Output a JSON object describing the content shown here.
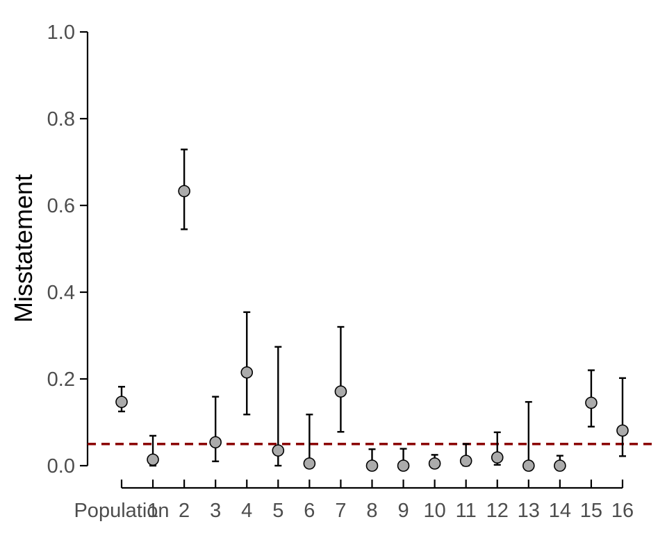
{
  "chart_data": {
    "type": "scatter",
    "title": "",
    "xlabel": "",
    "ylabel": "Misstatement",
    "ylim": [
      0,
      1
    ],
    "yticks": [
      0.0,
      0.2,
      0.4,
      0.6,
      0.8,
      1.0
    ],
    "ytick_labels": [
      "0.0",
      "0.2",
      "0.4",
      "0.6",
      "0.8",
      "1.0"
    ],
    "categories": [
      "Population",
      "1",
      "2",
      "3",
      "4",
      "5",
      "6",
      "7",
      "8",
      "9",
      "10",
      "11",
      "12",
      "13",
      "14",
      "15",
      "16"
    ],
    "values": [
      0.147,
      0.014,
      0.633,
      0.054,
      0.215,
      0.035,
      0.005,
      0.171,
      0.0,
      0.0,
      0.005,
      0.011,
      0.019,
      0.0,
      0.0,
      0.145,
      0.081
    ],
    "lower": [
      0.125,
      0.0,
      0.545,
      0.01,
      0.118,
      0.0,
      0.0,
      0.078,
      0.0,
      0.0,
      0.0,
      0.0,
      0.002,
      0.0,
      0.0,
      0.09,
      0.022
    ],
    "upper": [
      0.182,
      0.069,
      0.729,
      0.159,
      0.354,
      0.274,
      0.118,
      0.32,
      0.038,
      0.039,
      0.025,
      0.05,
      0.077,
      0.147,
      0.023,
      0.22,
      0.202
    ],
    "reference_line": 0.05,
    "grid": false,
    "legend": "none",
    "colors": {
      "point_fill": "#ababab",
      "point_stroke": "#000000",
      "error_bar": "#000000",
      "reference_line": "#8b0000",
      "axis": "#000000",
      "tick_label": "#4d4d4d"
    }
  }
}
